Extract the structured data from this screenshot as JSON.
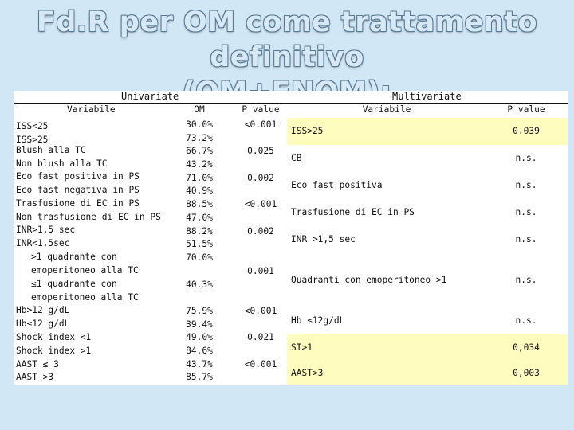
{
  "title": {
    "line1": "Fd.R per OM come trattamento definitivo",
    "line2": "(OM+FNOM):"
  },
  "univariate": {
    "section_label": "Univariate",
    "headers": {
      "variable": "Variabile",
      "om": "OM",
      "pvalue": "P value"
    },
    "variables": [
      "ISS<25",
      "ISS>25",
      "Blush alla TC",
      "Non blush alla TC",
      "Eco fast positiva in PS",
      "Eco fast negativa in PS",
      "Trasfusione di EC in PS",
      "Non trasfusione di EC in PS",
      "INR>1,5 sec",
      "INR<1,5sec",
      ">1 quadrante con",
      "emoperitoneo alla TC",
      "≤1 quadrante con",
      "emoperitoneo alla TC",
      "Hb>12 g/dL",
      "Hb≤12 g/dL",
      "Shock index <1",
      "Shock index >1",
      "AAST ≤ 3",
      "AAST >3"
    ],
    "om_values": [
      "30.0%",
      "73.2%",
      "66.7%",
      "43.2%",
      "71.0%",
      "40.9%",
      "88.5%",
      "47.0%",
      "88.2%",
      "51.5%",
      "70.0%",
      "40.3%",
      "75.9%",
      "39.4%",
      "49.0%",
      "84.6%",
      "43.7%",
      "85.7%"
    ],
    "p_values": [
      "<0.001",
      "0.025",
      "0.002",
      "<0.001",
      "0.002",
      "0.001",
      "<0.001",
      "0.021",
      "<0.001"
    ]
  },
  "multivariate": {
    "section_label": "Multivariate",
    "headers": {
      "variable": "Variabile",
      "pvalue": "P value"
    },
    "rows": [
      {
        "variable": "ISS>25",
        "pvalue": "0.039",
        "highlight": true
      },
      {
        "variable": "CB",
        "pvalue": "n.s.",
        "highlight": false
      },
      {
        "variable": "Eco fast positiva",
        "pvalue": "n.s.",
        "highlight": false
      },
      {
        "variable": "Trasfusione di EC in PS",
        "pvalue": "n.s.",
        "highlight": false
      },
      {
        "variable": "INR >1,5 sec",
        "pvalue": "n.s.",
        "highlight": false
      },
      {
        "variable": "Quadranti con emoperitoneo >1",
        "pvalue": "n.s.",
        "highlight": false
      },
      {
        "variable": "Hb ≤12g/dL",
        "pvalue": "n.s.",
        "highlight": false
      },
      {
        "variable": "SI>1",
        "pvalue": "0,034",
        "highlight": true
      },
      {
        "variable": "AAST>3",
        "pvalue": "0,003",
        "highlight": true
      }
    ]
  },
  "colors": {
    "background": "#d2e7f6",
    "panel": "#ffffff",
    "highlight": "#fffcbf",
    "title_fill": "#d7e9f7",
    "title_outline": "#5a7a92"
  }
}
